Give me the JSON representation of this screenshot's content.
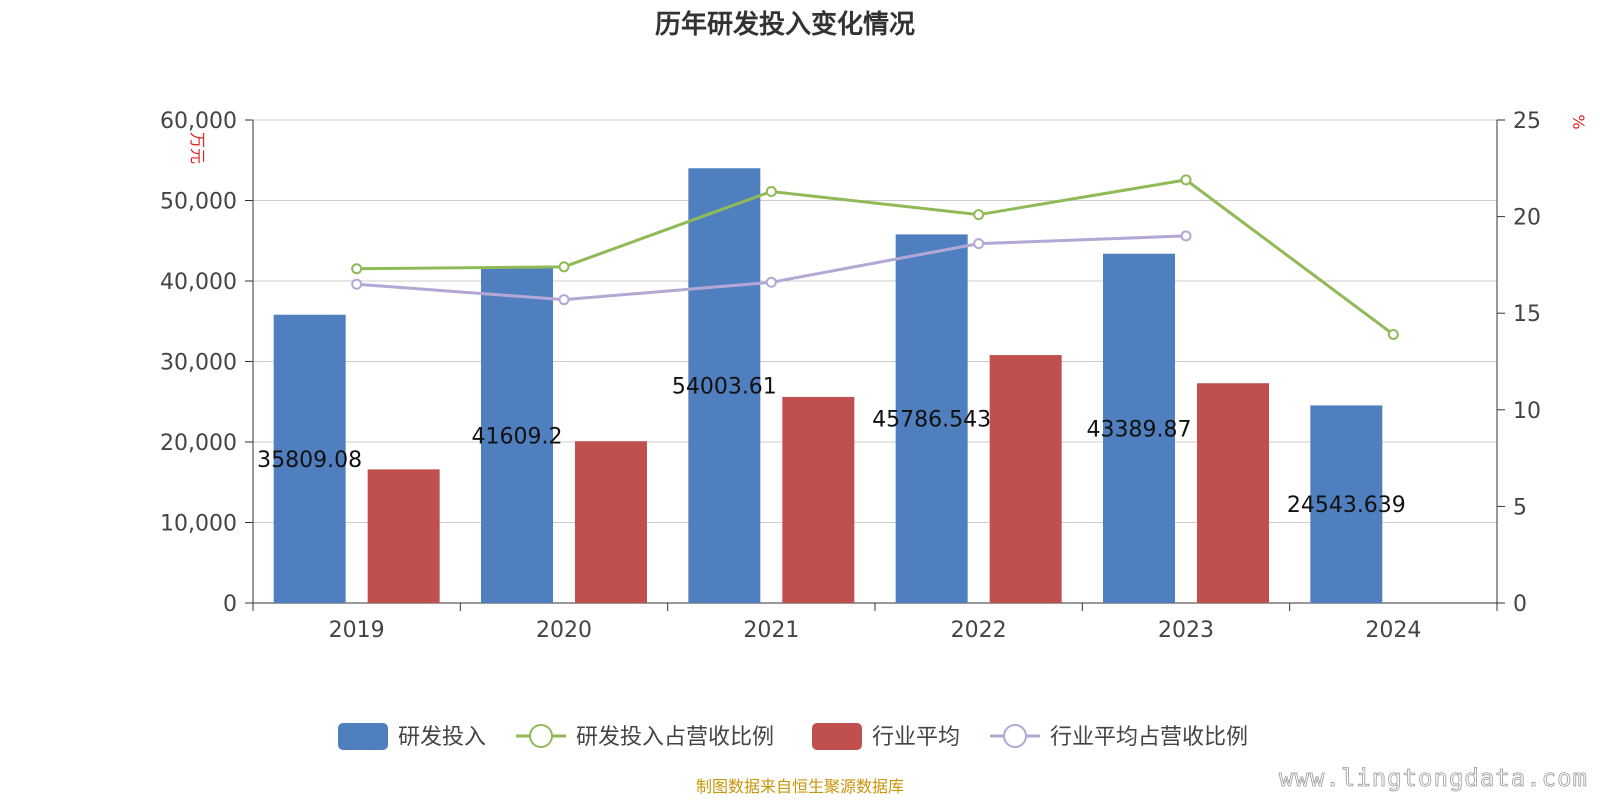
{
  "chart_data": {
    "type": "bar",
    "title": "历年研发投入变化情况",
    "categories": [
      "2019",
      "2020",
      "2021",
      "2022",
      "2023",
      "2024"
    ],
    "left_axis": {
      "unit": "万元",
      "min": 0,
      "max": 60000,
      "ticks": [
        "0",
        "10,000",
        "20,000",
        "30,000",
        "40,000",
        "50,000",
        "60,000"
      ]
    },
    "right_axis": {
      "unit": "%",
      "min": 0,
      "max": 25,
      "ticks": [
        "0",
        "5",
        "10",
        "15",
        "20",
        "25"
      ]
    },
    "series": [
      {
        "name": "研发投入",
        "type": "bar",
        "axis": "left",
        "color": "#4f7fbe",
        "values": [
          35809.08,
          41609.2,
          54003.61,
          45786.543,
          43389.87,
          24543.639
        ],
        "labels": [
          "35809.08",
          "41609.2",
          "54003.61",
          "45786.543",
          "43389.87",
          "24543.639"
        ]
      },
      {
        "name": "研发投入占营收比例",
        "type": "line",
        "axis": "right",
        "color": "#8fba57",
        "values": [
          17.3,
          17.4,
          21.3,
          20.1,
          21.9,
          13.9
        ]
      },
      {
        "name": "行业平均",
        "type": "bar",
        "axis": "left",
        "color": "#c0504d",
        "values": [
          16600,
          20100,
          25600,
          30800,
          27300,
          null
        ]
      },
      {
        "name": "行业平均占营收比例",
        "type": "line",
        "axis": "right",
        "color": "#b4a7d6",
        "values": [
          16.5,
          15.7,
          16.6,
          18.6,
          19.0,
          null
        ]
      }
    ],
    "legend_position": "bottom",
    "grid": true
  },
  "footer": {
    "source": "制图数据来自恒生聚源数据库",
    "watermark": "www.lingtongdata.com"
  }
}
